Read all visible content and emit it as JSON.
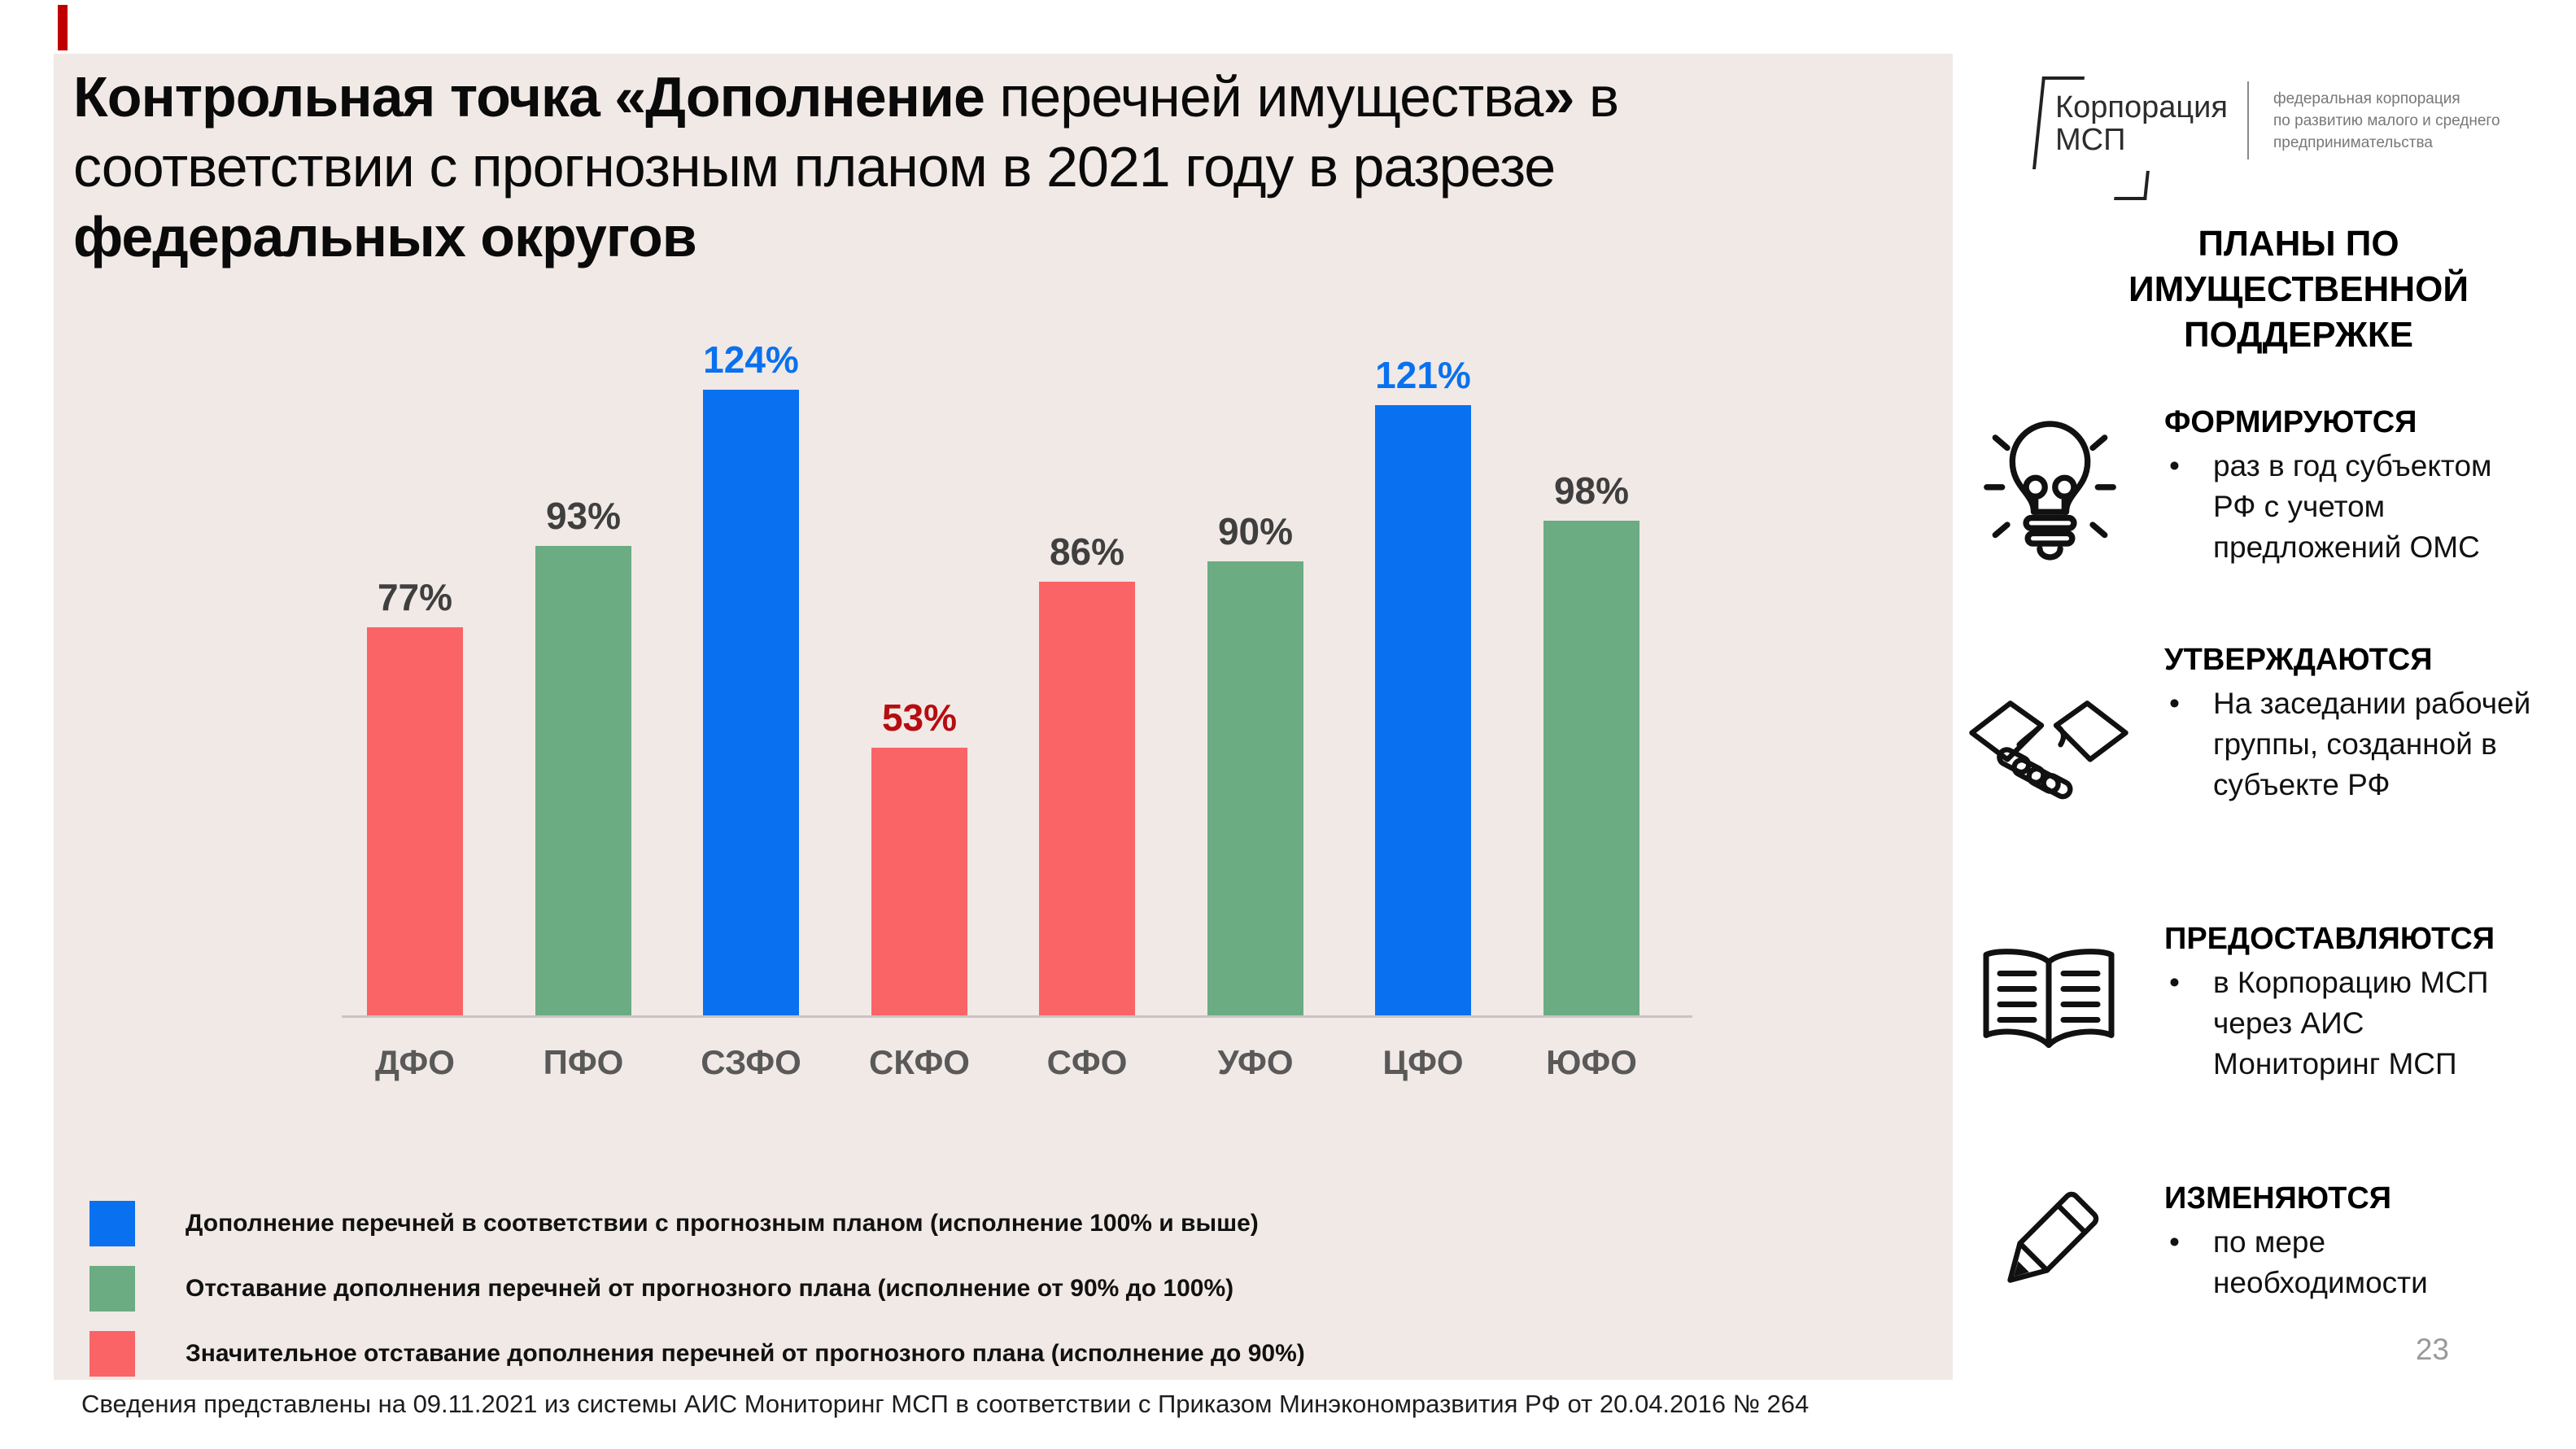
{
  "slide": {
    "title": {
      "seg1_bold": "Контрольная точка «Дополнение",
      "seg2_regular": " перечней имущества",
      "seg3_bold": "»",
      "seg4_regular": " в",
      "line2_regular": "соответствии с прогнозным планом в 2021 году в разрезе",
      "line3_bold": "федеральных округов"
    },
    "footnote": "Сведения представлены на 09.11.2021 из системы АИС Мониторинг МСП в соответствии с Приказом Минэкономразвития РФ от 20.04.2016 № 264",
    "page_number": "23"
  },
  "chart_data": {
    "type": "bar",
    "categories": [
      "ДФО",
      "ПФО",
      "СЗФО",
      "СКФО",
      "СФО",
      "УФО",
      "ЦФО",
      "ЮФО"
    ],
    "values": [
      77,
      93,
      124,
      53,
      86,
      90,
      121,
      98
    ],
    "value_labels": [
      "77%",
      "93%",
      "124%",
      "53%",
      "86%",
      "90%",
      "121%",
      "98%"
    ],
    "bar_colors": [
      "#FA6466",
      "#6BAC82",
      "#0971F0",
      "#FA6466",
      "#FA6466",
      "#6BAC82",
      "#0971F0",
      "#6BAC82"
    ],
    "value_label_colors": [
      "#3F3F3F",
      "#3F3F3F",
      "#0971F0",
      "#B60D10",
      "#3F3F3F",
      "#3F3F3F",
      "#0971F0",
      "#3F3F3F"
    ],
    "title": "",
    "xlabel": "",
    "ylabel": "",
    "ylim": [
      0,
      130
    ],
    "grid": false,
    "legend_position": "bottom-left"
  },
  "legend": {
    "items": [
      {
        "color": "#0971F0",
        "label": "Дополнение перечней в соответствии с прогнозным планом (исполнение 100% и выше)"
      },
      {
        "color": "#6BAC82",
        "label": "Отставание дополнения перечней от прогнозного плана (исполнение от 90% до 100%)"
      },
      {
        "color": "#FA6466",
        "label": "Значительное отставание дополнения перечней от прогнозного плана (исполнение до 90%)"
      }
    ]
  },
  "sidebar": {
    "logo": {
      "name_line1": "Корпорация",
      "name_line2": "МСП",
      "tagline_line1": "федеральная корпорация",
      "tagline_line2": "по развитию малого и среднего",
      "tagline_line3": "предпринимательства"
    },
    "heading": "ПЛАНЫ ПО ИМУЩЕСТВЕННОЙ ПОДДЕРЖКЕ",
    "items": [
      {
        "icon": "lightbulb-icon",
        "title": "ФОРМИРУЮТСЯ",
        "bullet_marker": "•",
        "bullet": "раз в год субъектом РФ с учетом предложений ОМС"
      },
      {
        "icon": "handshake-icon",
        "title": "УТВЕРЖДАЮТСЯ",
        "bullet_marker": "•",
        "bullet": "На заседании рабочей группы, созданной в субъекте РФ"
      },
      {
        "icon": "open-book-icon",
        "title": "ПРЕДОСТАВЛЯЮТСЯ",
        "bullet_marker": "•",
        "bullet": "в Корпорацию МСП через АИС Мониторинг МСП"
      },
      {
        "icon": "pencil-icon",
        "title": "ИЗМЕНЯЮТСЯ",
        "bullet_marker": "•",
        "bullet": "по мере необходимости"
      }
    ]
  }
}
